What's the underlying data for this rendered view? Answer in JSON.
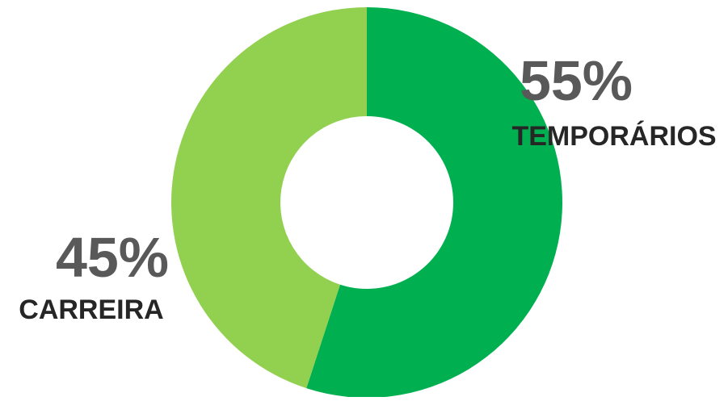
{
  "chart_data": {
    "type": "pie",
    "donut": true,
    "slices": [
      {
        "label": "TEMPORÁRIOS",
        "value": 55,
        "value_label": "55%",
        "color": "#00b050"
      },
      {
        "label": "CARREIRA",
        "value": 45,
        "value_label": "45%",
        "color": "#92d050"
      }
    ],
    "start": "12 o'clock",
    "direction": "clockwise",
    "legend": "none",
    "data_labels": "outside, percentage above category"
  }
}
